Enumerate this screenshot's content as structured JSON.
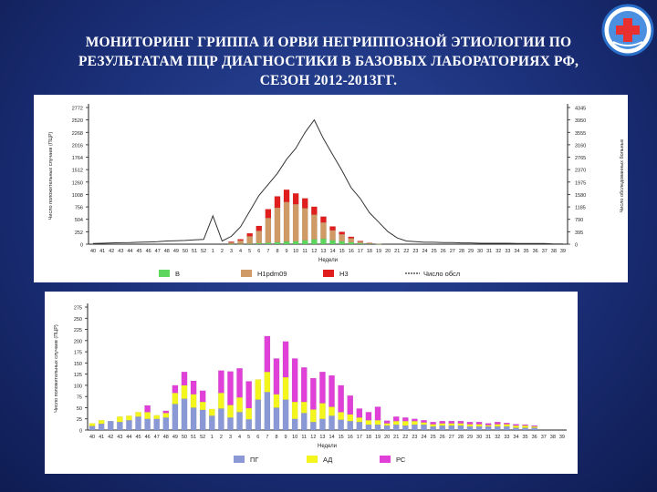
{
  "slide": {
    "title_lines": [
      "МОНИТОРИНГ ГРИППА И ОРВИ НЕГРИППОЗНОЙ ЭТИОЛОГИИ ПО",
      "РЕЗУЛЬТАТАМ ПЦР ДИАГНОСТИКИ В БАЗОВЫХ ЛАБОРАТОРИЯХ РФ,",
      "СЕЗОН 2012-2013ГГ."
    ],
    "logo_icon": "medical-cross-emblem-icon"
  },
  "chart_data": [
    {
      "type": "bar",
      "stacked": true,
      "ylabel": "Число положительных случаев (ПЦР)",
      "y2label": "Число обследованных больных",
      "xlabel": "Недели",
      "yticks": [
        "0",
        "252",
        "504",
        "756",
        "1008",
        "1260",
        "1512",
        "1764",
        "2016",
        "2268",
        "2520",
        "2772"
      ],
      "y2ticks": [
        "0",
        "395",
        "790",
        "1185",
        "1580",
        "1975",
        "2370",
        "2765",
        "3160",
        "3555",
        "3950",
        "4345"
      ],
      "ylim": [
        0,
        2772
      ],
      "y2lim": [
        0,
        4345
      ],
      "categories": [
        "40",
        "41",
        "42",
        "43",
        "44",
        "45",
        "46",
        "47",
        "48",
        "49",
        "50",
        "51",
        "52",
        "1",
        "2",
        "3",
        "4",
        "5",
        "6",
        "7",
        "8",
        "9",
        "10",
        "11",
        "12",
        "13",
        "14",
        "15",
        "16",
        "17",
        "18",
        "19",
        "20",
        "21",
        "22",
        "23",
        "24",
        "25",
        "26",
        "27",
        "28",
        "29",
        "30",
        "31",
        "32",
        "33",
        "34",
        "35",
        "36",
        "37",
        "38",
        "39"
      ],
      "series": [
        {
          "name": "B",
          "color": "#5cd65c",
          "values": [
            0,
            0,
            0,
            0,
            0,
            0,
            0,
            0,
            0,
            0,
            0,
            0,
            0,
            0,
            0,
            5,
            5,
            10,
            20,
            30,
            40,
            55,
            60,
            80,
            100,
            110,
            80,
            60,
            40,
            20,
            10,
            5,
            0,
            0,
            0,
            0,
            0,
            0,
            0,
            0,
            0,
            0,
            0,
            0,
            0,
            0,
            0,
            0,
            0,
            0,
            0,
            0
          ]
        },
        {
          "name": "H1pdm09",
          "color": "#d09a66",
          "values": [
            0,
            0,
            0,
            0,
            0,
            0,
            0,
            0,
            0,
            0,
            0,
            0,
            0,
            0,
            0,
            30,
            70,
            150,
            250,
            500,
            700,
            800,
            750,
            650,
            500,
            330,
            200,
            140,
            80,
            30,
            10,
            5,
            0,
            0,
            0,
            0,
            0,
            0,
            0,
            0,
            0,
            0,
            0,
            0,
            0,
            0,
            0,
            0,
            0,
            0,
            0,
            0
          ]
        },
        {
          "name": "H3",
          "color": "#e01e1e",
          "values": [
            0,
            0,
            0,
            0,
            0,
            0,
            0,
            0,
            0,
            0,
            0,
            0,
            0,
            0,
            0,
            15,
            25,
            60,
            100,
            180,
            230,
            250,
            220,
            200,
            160,
            120,
            80,
            50,
            30,
            15,
            5,
            0,
            0,
            0,
            0,
            0,
            0,
            0,
            0,
            0,
            0,
            0,
            0,
            0,
            0,
            0,
            0,
            0,
            0,
            0,
            0,
            0
          ]
        }
      ],
      "line": {
        "name": "Число обсл",
        "color": "#333333",
        "axis": "y2",
        "values": [
          20,
          30,
          40,
          45,
          50,
          60,
          70,
          80,
          100,
          110,
          120,
          140,
          150,
          900,
          100,
          250,
          550,
          1050,
          1550,
          1900,
          2250,
          2700,
          3050,
          3550,
          3950,
          3350,
          2850,
          2350,
          1800,
          1450,
          1000,
          700,
          400,
          200,
          100,
          80,
          60,
          60,
          50,
          50,
          40,
          40,
          30,
          30,
          30,
          30,
          20,
          20,
          20,
          20,
          10,
          10
        ]
      },
      "legend": [
        "B",
        "H1pdm09",
        "H3",
        "Число обсл"
      ]
    },
    {
      "type": "bar",
      "stacked": true,
      "ylabel": "Число положительных случаев (ПЦР)",
      "xlabel": "Недели",
      "yticks": [
        "0",
        "25",
        "50",
        "75",
        "100",
        "125",
        "150",
        "175",
        "200",
        "225",
        "250",
        "275"
      ],
      "ylim": [
        0,
        275
      ],
      "categories": [
        "40",
        "41",
        "42",
        "43",
        "44",
        "45",
        "46",
        "47",
        "48",
        "49",
        "50",
        "51",
        "52",
        "1",
        "2",
        "3",
        "4",
        "5",
        "6",
        "7",
        "8",
        "9",
        "10",
        "11",
        "12",
        "13",
        "14",
        "15",
        "16",
        "17",
        "18",
        "19",
        "20",
        "21",
        "22",
        "23",
        "24",
        "25",
        "26",
        "27",
        "28",
        "29",
        "30",
        "31",
        "32",
        "33",
        "34",
        "35",
        "36",
        "37",
        "38",
        "39"
      ],
      "series": [
        {
          "name": "ПГ",
          "color": "#8a99d6",
          "values": [
            9,
            14,
            20,
            18,
            22,
            30,
            25,
            25,
            28,
            58,
            70,
            50,
            45,
            32,
            48,
            28,
            40,
            24,
            68,
            85,
            50,
            68,
            25,
            38,
            18,
            25,
            32,
            23,
            20,
            18,
            12,
            12,
            10,
            12,
            10,
            12,
            12,
            8,
            10,
            10,
            10,
            8,
            8,
            8,
            8,
            8,
            5,
            5,
            5,
            0,
            0,
            0
          ]
        },
        {
          "name": "АД",
          "color": "#f5f51e",
          "values": [
            6,
            8,
            0,
            12,
            10,
            10,
            15,
            8,
            10,
            25,
            30,
            30,
            18,
            15,
            35,
            28,
            33,
            25,
            45,
            45,
            30,
            50,
            38,
            25,
            28,
            35,
            20,
            17,
            15,
            10,
            10,
            10,
            5,
            8,
            10,
            8,
            5,
            5,
            5,
            5,
            5,
            5,
            5,
            3,
            5,
            5,
            5,
            5,
            3,
            0,
            0,
            0
          ]
        },
        {
          "name": "РС",
          "color": "#e040d8",
          "values": [
            0,
            0,
            0,
            0,
            0,
            0,
            15,
            0,
            5,
            17,
            30,
            30,
            25,
            0,
            50,
            75,
            65,
            60,
            0,
            80,
            80,
            80,
            97,
            77,
            70,
            70,
            70,
            60,
            42,
            20,
            18,
            30,
            6,
            10,
            8,
            5,
            5,
            5,
            5,
            5,
            5,
            5,
            5,
            4,
            5,
            3,
            3,
            2,
            2,
            0,
            0,
            0
          ]
        }
      ],
      "legend": [
        "ПГ",
        "АД",
        "РС"
      ]
    }
  ]
}
